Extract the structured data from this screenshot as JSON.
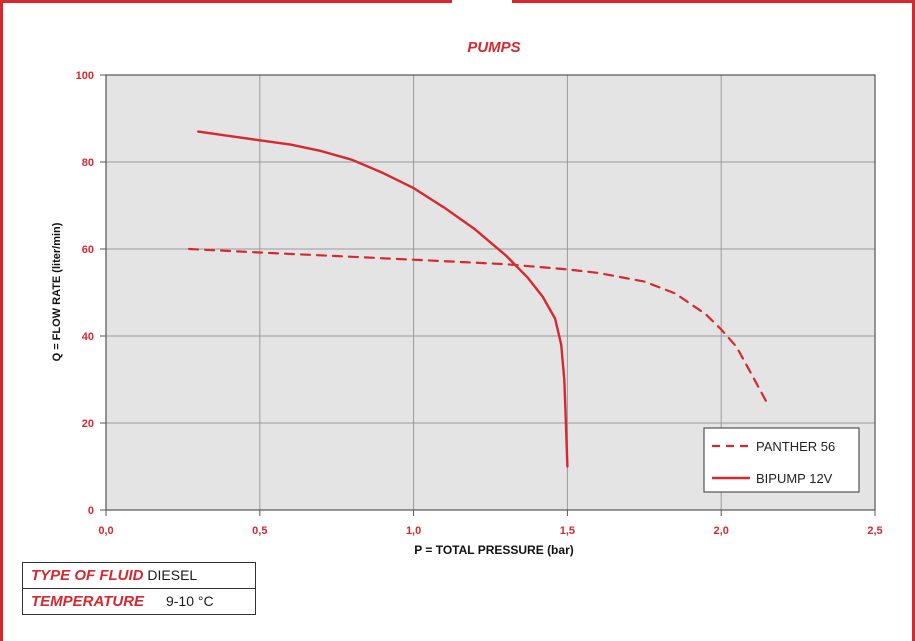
{
  "chart_data": {
    "type": "line",
    "title": "PUMPS",
    "xlabel": "P = TOTAL PRESSURE (bar)",
    "ylabel": "Q = FLOW RATE (liter/min)",
    "xlim": [
      0,
      2.5
    ],
    "ylim": [
      0,
      100
    ],
    "x_ticks": [
      0,
      0.5,
      1.0,
      1.5,
      2.0,
      2.5
    ],
    "x_tick_labels": [
      "0,0",
      "0,5",
      "1,0",
      "1,5",
      "2,0",
      "2,5"
    ],
    "y_ticks": [
      0,
      20,
      40,
      60,
      80,
      100
    ],
    "y_tick_labels": [
      "0",
      "20",
      "40",
      "60",
      "80",
      "100"
    ],
    "grid": true,
    "legend_position": "bottom-right",
    "series": [
      {
        "name": "PANTHER 56",
        "style": "dashed",
        "color": "#d7282f",
        "points": [
          [
            0.27,
            60
          ],
          [
            0.5,
            59.2
          ],
          [
            0.8,
            58.2
          ],
          [
            1.1,
            57.2
          ],
          [
            1.3,
            56.5
          ],
          [
            1.5,
            55.3
          ],
          [
            1.6,
            54.5
          ],
          [
            1.75,
            52.5
          ],
          [
            1.85,
            49.8
          ],
          [
            1.95,
            45
          ],
          [
            2.0,
            41.5
          ],
          [
            2.05,
            37.5
          ],
          [
            2.1,
            31
          ],
          [
            2.15,
            24.5
          ]
        ]
      },
      {
        "name": "BIPUMP 12V",
        "style": "solid",
        "color": "#d7282f",
        "points": [
          [
            0.3,
            87
          ],
          [
            0.4,
            86
          ],
          [
            0.5,
            85
          ],
          [
            0.6,
            84
          ],
          [
            0.7,
            82.5
          ],
          [
            0.8,
            80.5
          ],
          [
            0.9,
            77.5
          ],
          [
            1.0,
            74
          ],
          [
            1.1,
            69.5
          ],
          [
            1.2,
            64.5
          ],
          [
            1.3,
            58.5
          ],
          [
            1.37,
            53.5
          ],
          [
            1.42,
            49
          ],
          [
            1.46,
            44
          ],
          [
            1.48,
            38
          ],
          [
            1.49,
            30
          ],
          [
            1.495,
            20
          ],
          [
            1.5,
            10
          ]
        ]
      }
    ]
  },
  "info_table": {
    "fluid_label": "TYPE OF FLUID",
    "fluid_value": "DIESEL",
    "temperature_label": "TEMPERATURE",
    "temperature_value": "9-10 °C"
  }
}
